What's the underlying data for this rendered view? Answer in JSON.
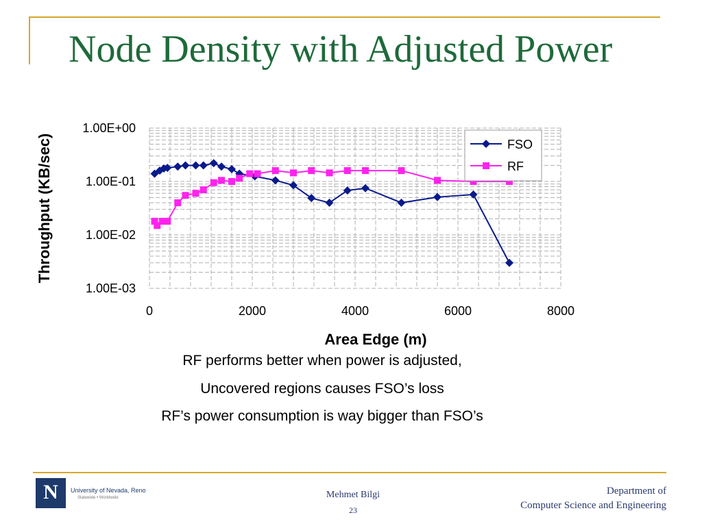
{
  "slide": {
    "title": "Node Density with Adjusted Power",
    "notes": [
      "RF performs better when power is adjusted,",
      "Uncovered regions causes FSO’s loss",
      "RF’s power consumption is way bigger than FSO’s"
    ],
    "footer": {
      "logo_text": "University of Nevada, Reno",
      "logo_tagline": "Statewide • Worldwide",
      "author": "Mehmet Bilgi",
      "page": "23",
      "dept_line1": "Department of",
      "dept_line2": "Computer Science and Engineering"
    },
    "colors": {
      "title": "#1e6a3a",
      "accent": "#d4a82a",
      "brand": "#1d3a6b"
    }
  },
  "chart_data": {
    "type": "line",
    "title": "",
    "xlabel": "Area Edge (m)",
    "ylabel": "Throughput (KB/sec)",
    "xlim": [
      0,
      8000
    ],
    "ylim": [
      0.001,
      1
    ],
    "yscale": "log",
    "xticks": [
      "0",
      "2000",
      "4000",
      "6000",
      "8000"
    ],
    "yticks": [
      "1.00E+00",
      "1.00E-01",
      "1.00E-02",
      "1.00E-03"
    ],
    "grid": true,
    "legend": "top-right",
    "series": [
      {
        "name": "FSO",
        "color": "#0a1a8c",
        "marker": "diamond",
        "x": [
          100,
          200,
          280,
          350,
          550,
          700,
          900,
          1050,
          1250,
          1400,
          1600,
          1750,
          2050,
          2450,
          2800,
          3150,
          3500,
          3850,
          4200,
          4900,
          5600,
          6300,
          7000
        ],
        "y": [
          0.14,
          0.16,
          0.175,
          0.18,
          0.19,
          0.2,
          0.2,
          0.2,
          0.22,
          0.19,
          0.17,
          0.14,
          0.125,
          0.105,
          0.085,
          0.049,
          0.04,
          0.068,
          0.075,
          0.04,
          0.051,
          0.057,
          0.003
        ]
      },
      {
        "name": "RF",
        "color": "#ff22ee",
        "marker": "square",
        "x": [
          100,
          150,
          250,
          350,
          550,
          700,
          900,
          1050,
          1250,
          1400,
          1600,
          1750,
          1950,
          2100,
          2450,
          2800,
          3150,
          3500,
          3850,
          4200,
          4900,
          5600,
          6300,
          7000
        ],
        "y": [
          0.018,
          0.015,
          0.018,
          0.018,
          0.04,
          0.055,
          0.06,
          0.07,
          0.095,
          0.105,
          0.1,
          0.115,
          0.14,
          0.14,
          0.16,
          0.145,
          0.16,
          0.145,
          0.16,
          0.16,
          0.16,
          0.105,
          0.1,
          0.1
        ]
      }
    ]
  }
}
